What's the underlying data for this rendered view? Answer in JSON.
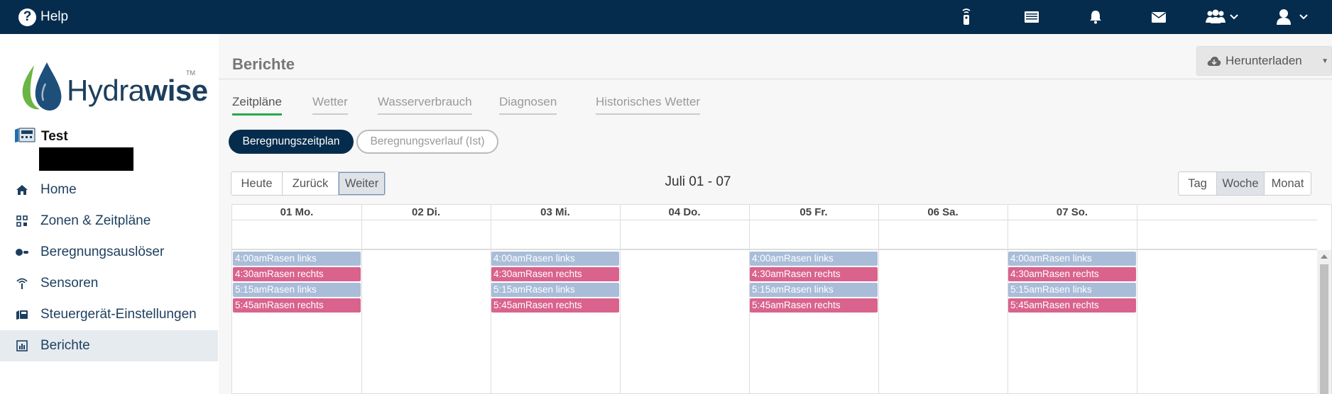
{
  "topbar": {
    "help_label": "Help",
    "icons": [
      "remote-icon",
      "controller-list-icon",
      "bell-icon",
      "mail-icon",
      "users-icon",
      "user-icon"
    ]
  },
  "logo": {
    "text_light": "Hydra",
    "text_bold": "wise",
    "tm": "TM"
  },
  "user": {
    "name": "Test"
  },
  "nav": {
    "items": [
      {
        "label": "Home"
      },
      {
        "label": "Zonen & Zeitpläne"
      },
      {
        "label": "Beregnungsauslöser"
      },
      {
        "label": "Sensoren"
      },
      {
        "label": "Steuergerät-Einstellungen"
      },
      {
        "label": "Berichte"
      }
    ],
    "active": "Berichte"
  },
  "page": {
    "title": "Berichte",
    "download_label": "Herunterladen"
  },
  "tabs": [
    {
      "label": "Zeitpläne"
    },
    {
      "label": "Wetter"
    },
    {
      "label": "Wasserverbrauch"
    },
    {
      "label": "Diagnosen"
    },
    {
      "label": "Historisches Wetter"
    }
  ],
  "active_tab": "Zeitpläne",
  "subtabs": {
    "primary": "Beregnungszeitplan",
    "secondary": "Beregnungsverlauf (Ist)"
  },
  "nav_buttons": {
    "today": "Heute",
    "back": "Zurück",
    "next": "Weiter"
  },
  "date_range": "Juli 01 - 07",
  "view_buttons": {
    "day": "Tag",
    "week": "Woche",
    "month": "Monat"
  },
  "selected_view": "Woche",
  "calendar": {
    "days": [
      "01 Mo.",
      "02 Di.",
      "03 Mi.",
      "04 Do.",
      "05 Fr.",
      "06 Sa.",
      "07 So."
    ],
    "events": [
      {
        "time": "4:00am",
        "title": "Rasen links",
        "color": "#a9bdd9"
      },
      {
        "time": "4:30am",
        "title": "Rasen rechts",
        "color": "#d9638d"
      },
      {
        "time": "5:15am",
        "title": "Rasen links",
        "color": "#a9bdd9"
      },
      {
        "time": "5:45am",
        "title": "Rasen rechts",
        "color": "#d9638d"
      }
    ],
    "days_with_events": [
      "01 Mo.",
      "03 Mi.",
      "05 Fr.",
      "07 So."
    ]
  },
  "colors": {
    "topbar": "#052c4d",
    "accent_green": "#2aa84a",
    "event_blue": "#a9bdd9",
    "event_pink": "#d9638d"
  }
}
